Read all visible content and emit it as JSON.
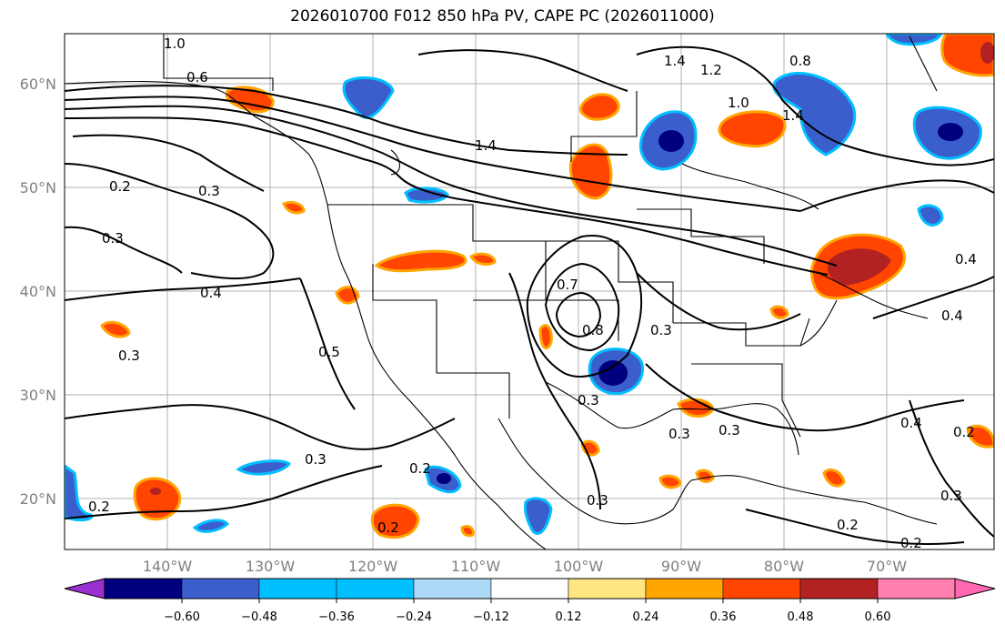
{
  "title": "2026010700 F012 850 hPa PV, CAPE PC (2026011000)",
  "map": {
    "lat_ticks": [
      "60°N",
      "50°N",
      "40°N",
      "30°N",
      "20°N"
    ],
    "lon_ticks": [
      "140°W",
      "130°W",
      "120°W",
      "110°W",
      "100°W",
      "90°W",
      "80°W",
      "70°W"
    ],
    "contour_labels": [
      "1.0",
      "0.6",
      "1.4",
      "1.4",
      "1.2",
      "1.0",
      "1.4",
      "0.8",
      "0.2",
      "0.3",
      "0.3",
      "0.4",
      "0.5",
      "0.3",
      "0.3",
      "0.3",
      "0.2",
      "0.2",
      "0.3",
      "0.3",
      "0.4",
      "0.4",
      "0.2",
      "0.3",
      "0.2",
      "0.4",
      "0.2",
      "0.2",
      "0.3",
      "0.7",
      "0.8",
      "0.3"
    ]
  },
  "colorbar": {
    "ticks": [
      "−0.60",
      "−0.48",
      "−0.36",
      "−0.24",
      "−0.12",
      "0.12",
      "0.24",
      "0.36",
      "0.48",
      "0.60"
    ],
    "colors": [
      "#9b30d0",
      "#00007f",
      "#3a5fcd",
      "#00bfff",
      "#add8f6",
      "#ffffff",
      "#ffe680",
      "#ffa500",
      "#ff4500",
      "#b22222",
      "#ff7fae",
      "#ff69b4"
    ]
  }
}
